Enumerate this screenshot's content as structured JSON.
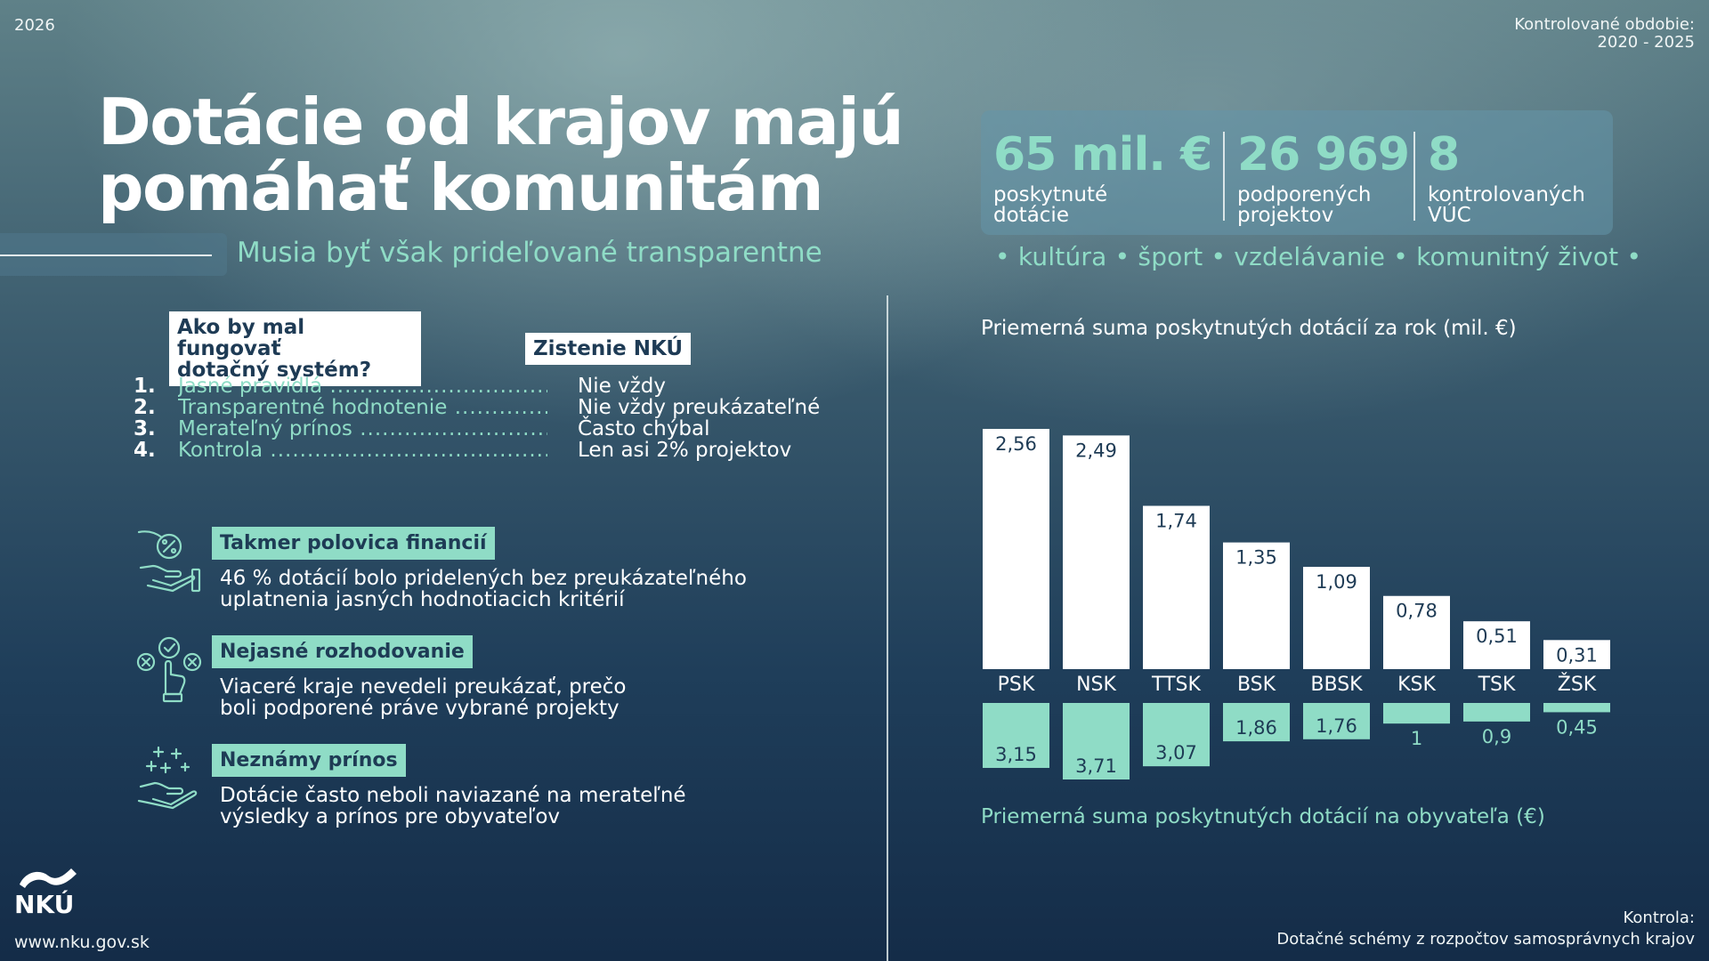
{
  "header": {
    "year": "2026",
    "period_label": "Kontrolované obdobie:",
    "period_value": "2020 - 2025",
    "title": "Dotácie od krajov majú\npomáhať komunitám",
    "subtitle": "Musia byť však prideľované transparentne"
  },
  "stats": [
    {
      "value": "65 mil. €",
      "label": "poskytnuté\ndotácie"
    },
    {
      "value": "26 969",
      "label": "podporených\nprojektov"
    },
    {
      "value": "8",
      "label": "kontrolovaných\nVÚC"
    }
  ],
  "topics": "• kultúra • šport • vzdelávanie • komunitný život •",
  "comparison": {
    "question_title": "Ako by mal fungovať\ndotačný systém?",
    "findings_title": "Zistenie NKÚ",
    "rows": [
      {
        "num": "1.",
        "rule": "Jasné pravidlá",
        "finding": "Nie vždy"
      },
      {
        "num": "2.",
        "rule": "Transparentné hodnotenie",
        "finding": "Nie vždy preukázateľné"
      },
      {
        "num": "3.",
        "rule": "Merateľný prínos",
        "finding": "Často chýbal"
      },
      {
        "num": "4.",
        "rule": "Kontrola",
        "finding": "Len asi 2% projektov"
      }
    ]
  },
  "findings": [
    {
      "icon": "hand-percent-icon",
      "heading": "Takmer polovica financií",
      "text": "46 % dotácií bolo pridelených bez preukázateľného\nuplatnenia jasných hodnotiacich kritérií"
    },
    {
      "icon": "decision-choice-icon",
      "heading": "Nejasné rozhodovanie",
      "text": "Viaceré kraje nevedeli preukázať, prečo\nboli podporené práve vybrané projekty"
    },
    {
      "icon": "hand-sparkle-icon",
      "heading": "Neznámy prínos",
      "text": "Dotácie často neboli naviazané na merateľné\nvýsledky a prínos pre obyvateľov"
    }
  ],
  "footer": {
    "website": "www.nku.gov.sk",
    "logo_text": "NKÚ",
    "control_label": "Kontrola:",
    "control_value": "Dotačné schémy z rozpočtov samosprávnych krajov"
  },
  "colors": {
    "accent": "#8fdcc6",
    "dark": "#1e3b55",
    "white": "#ffffff"
  },
  "chart_data": {
    "type": "bar",
    "categories": [
      "PSK",
      "NSK",
      "TTSK",
      "BSK",
      "BBSK",
      "KSK",
      "TSK",
      "ŽSK"
    ],
    "series": [
      {
        "values": [
          2.56,
          2.49,
          1.74,
          1.35,
          1.09,
          0.78,
          0.51,
          0.31
        ],
        "labels": [
          "2,56",
          "2,49",
          "1,74",
          "1,35",
          "1,09",
          "0,78",
          "0,51",
          "0,31"
        ]
      },
      {
        "values": [
          3.15,
          3.71,
          3.07,
          1.86,
          1.76,
          1,
          0.9,
          0.45
        ],
        "labels": [
          "3,15",
          "3,71",
          "3,07",
          "1,86",
          "1,76",
          "1",
          "0,9",
          "0,45"
        ]
      }
    ],
    "title": "Priemerná suma poskytnutých dotácií za rok (mil. €)",
    "bottom_title": "Priemerná suma poskytnutých dotácií na obyvateľa (€)",
    "colors": [
      "#ffffff",
      "#8fdcc6"
    ]
  }
}
